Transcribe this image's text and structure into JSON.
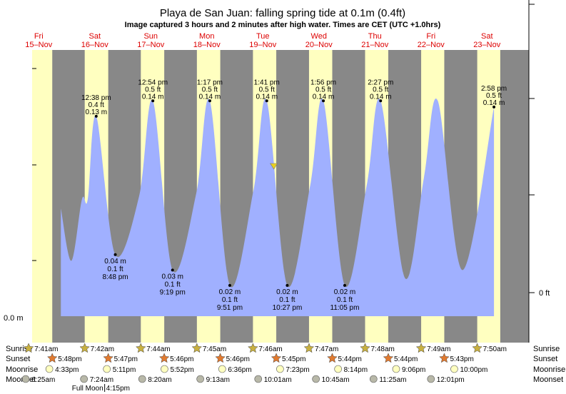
{
  "chart_data": {
    "type": "area",
    "title": "Playa de San Juan: falling  spring tide at 0.1m (0.4ft)",
    "subtitle": "Image captured 3 hours and 2 minutes after high water. Times are CET (UTC +1.0hrs)",
    "y_left_label": "0.0 m",
    "y_right_label": "0 ft",
    "days": [
      {
        "dow": "Fri",
        "date": "15–Nov"
      },
      {
        "dow": "Sat",
        "date": "16–Nov"
      },
      {
        "dow": "Sun",
        "date": "17–Nov"
      },
      {
        "dow": "Mon",
        "date": "18–Nov"
      },
      {
        "dow": "Tue",
        "date": "19–Nov"
      },
      {
        "dow": "Wed",
        "date": "20–Nov"
      },
      {
        "dow": "Thu",
        "date": "21–Nov"
      },
      {
        "dow": "Fri",
        "date": "22–Nov"
      },
      {
        "dow": "Sat",
        "date": "23–Nov"
      }
    ],
    "high_tides": [
      {
        "time": "12:38 pm",
        "ft": "0.4 ft",
        "m": "0.13 m"
      },
      {
        "time": "12:54 pm",
        "ft": "0.5 ft",
        "m": "0.14 m"
      },
      {
        "time": "1:17 pm",
        "ft": "0.5 ft",
        "m": "0.14 m"
      },
      {
        "time": "1:41 pm",
        "ft": "0.5 ft",
        "m": "0.14 m"
      },
      {
        "time": "1:56 pm",
        "ft": "0.5 ft",
        "m": "0.14 m"
      },
      {
        "time": "2:27 pm",
        "ft": "0.5 ft",
        "m": "0.14 m"
      },
      {
        "time": "2:58 pm",
        "ft": "0.5 ft",
        "m": "0.14 m"
      }
    ],
    "low_tides": [
      {
        "m": "0.04 m",
        "ft": "0.1 ft",
        "time": "8:48 pm"
      },
      {
        "m": "0.03 m",
        "ft": "0.1 ft",
        "time": "9:19 pm"
      },
      {
        "m": "0.02 m",
        "ft": "0.1 ft",
        "time": "9:51 pm"
      },
      {
        "m": "0.02 m",
        "ft": "0.1 ft",
        "time": "10:27 pm"
      },
      {
        "m": "0.02 m",
        "ft": "0.1 ft",
        "time": "11:05 pm"
      }
    ],
    "tide_series_m": [
      0.07,
      0.036,
      0.076,
      0.076,
      0.13,
      0.04,
      0.078,
      0.14,
      0.03,
      0.08,
      0.14,
      0.02,
      0.082,
      0.14,
      0.02,
      0.085,
      0.14,
      0.02,
      0.086,
      0.14,
      0.025,
      0.09,
      0.14,
      0.03,
      0.136
    ],
    "sunrise": [
      "7:41am",
      "7:42am",
      "7:44am",
      "7:45am",
      "7:46am",
      "7:47am",
      "7:48am",
      "7:49am",
      "7:50am"
    ],
    "sunset": [
      "5:48pm",
      "5:47pm",
      "5:46pm",
      "5:46pm",
      "5:45pm",
      "5:44pm",
      "5:44pm",
      "5:43pm"
    ],
    "moonrise": [
      "4:33pm",
      "5:11pm",
      "5:52pm",
      "6:36pm",
      "7:23pm",
      "8:14pm",
      "9:06pm",
      "10:00pm"
    ],
    "moonset": [
      "6:25am",
      "7:24am",
      "8:20am",
      "9:13am",
      "10:01am",
      "10:45am",
      "11:25am",
      "12:01pm"
    ],
    "row_labels": {
      "sunrise": "Sunrise",
      "sunset": "Sunset",
      "moonrise": "Moonrise",
      "moonset": "Moonset"
    },
    "full_moon": {
      "label": "Full Moon",
      "time": "4:15pm"
    },
    "colors": {
      "night": "#888888",
      "day": "#ffffc0",
      "water": "#a0b0ff",
      "day_label": "#dd0000",
      "marker": "#e8d020",
      "sunrise_star": "#c8b040",
      "sunset_star": "#e07a30",
      "moonrise": "#ffffc0",
      "moonset": "#b8b8a8"
    }
  }
}
